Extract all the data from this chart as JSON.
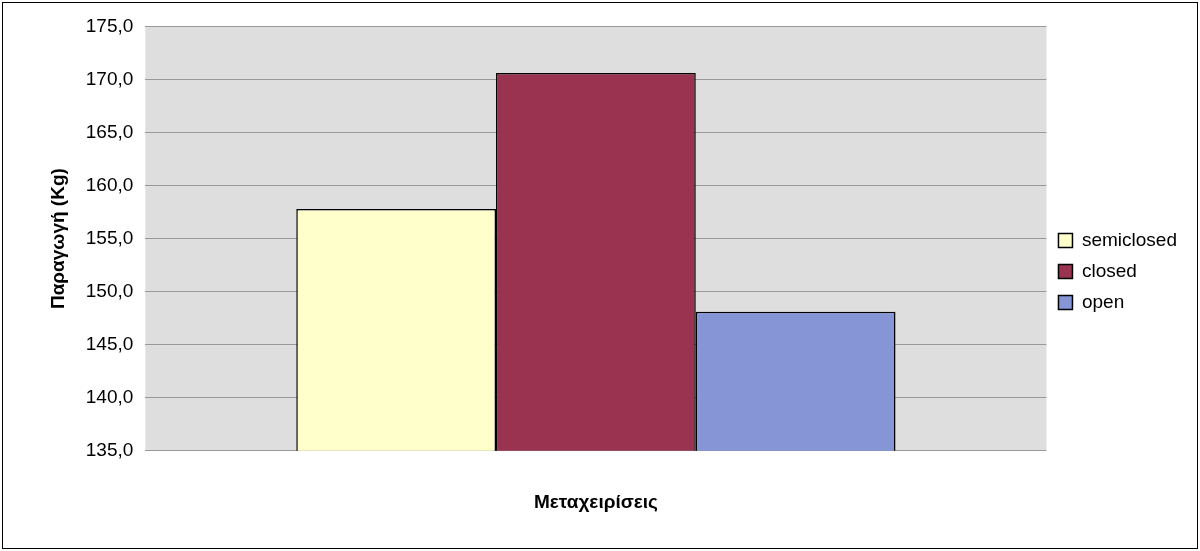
{
  "chart_data": {
    "type": "bar",
    "xlabel": "Μεταχειρίσεις",
    "ylabel": "Παραγωγή (Kg)",
    "categories": [
      null
    ],
    "series": [
      {
        "name": "semiclosed",
        "color": "#ffffcc",
        "values": [
          157.8
        ]
      },
      {
        "name": "closed",
        "color": "#993350",
        "values": [
          170.6
        ]
      },
      {
        "name": "open",
        "color": "#8595d5",
        "values": [
          148.1
        ]
      }
    ],
    "ylim": [
      135,
      175
    ],
    "yticks": [
      {
        "value": 135,
        "label": "135,0"
      },
      {
        "value": 140,
        "label": "140,0"
      },
      {
        "value": 145,
        "label": "145,0"
      },
      {
        "value": 150,
        "label": "150,0"
      },
      {
        "value": 155,
        "label": "155,0"
      },
      {
        "value": 160,
        "label": "160,0"
      },
      {
        "value": 165,
        "label": "165,0"
      },
      {
        "value": 170,
        "label": "170,0"
      },
      {
        "value": 175,
        "label": "175,0"
      }
    ],
    "grid": "y",
    "legend": "right"
  }
}
